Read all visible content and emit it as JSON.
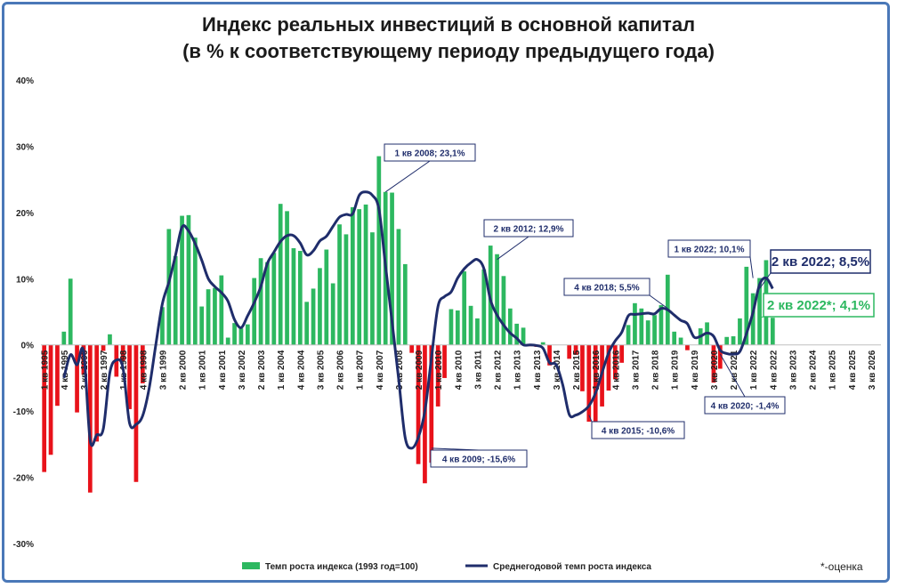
{
  "chart_data": {
    "type": "bar",
    "title_line1": "Индекс реальных инвестиций в основной капитал",
    "title_line2": "(в % к соответствующему периоду предыдущего года)",
    "ylim": [
      -30,
      40
    ],
    "yticks": [
      "-30%",
      "-20%",
      "-10%",
      "0%",
      "10%",
      "20%",
      "30%",
      "40%"
    ],
    "ytick_values": [
      -30,
      -20,
      -10,
      0,
      10,
      20,
      30,
      40
    ],
    "grid": false,
    "legend_position": "bottom",
    "x_period_start": "1 кв 1995",
    "x_period_end": "4 кв 2026",
    "x_tick_labels": [
      "1 кв 1995",
      "4 кв 1995",
      "3 кв 1996",
      "2 кв 1997",
      "1 кв 1998",
      "4 кв 1998",
      "3 кв 1999",
      "2 кв 2000",
      "1 кв 2001",
      "4 кв 2001",
      "3 кв 2002",
      "2 кв 2003",
      "1 кв 2004",
      "4 кв 2004",
      "3 кв 2005",
      "2 кв 2006",
      "1 кв 2007",
      "4 кв 2007",
      "3 кв 2008",
      "2 кв 2009",
      "1 кв 2010",
      "4 кв 2010",
      "3 кв 2011",
      "2 кв 2012",
      "1 кв 2013",
      "4 кв 2013",
      "3 кв 2014",
      "2 кв 2015",
      "1 кв 2016",
      "4 кв 2016",
      "3 кв 2017",
      "2 кв 2018",
      "1 кв 2019",
      "4 кв 2019",
      "3 кв 2020",
      "2 кв 2021",
      "1 кв 2022",
      "4 кв 2022",
      "3 кв 2023",
      "2 кв 2024",
      "1 кв 2025",
      "4 кв 2025",
      "3 кв 2026"
    ],
    "series": [
      {
        "name": "Темп роста индекса (1993 год=100)",
        "color_positive": "#2db860",
        "color_negative": "#e8121a",
        "values": [
          -19.2,
          -16.6,
          -9.2,
          2.0,
          10.0,
          -10.2,
          -4.5,
          -22.3,
          -14.6,
          -0.9,
          1.6,
          -4.8,
          -2.5,
          -9.7,
          -20.7,
          -5.8,
          0,
          0,
          5.7,
          17.5,
          13.4,
          19.5,
          19.6,
          16.2,
          5.8,
          8.4,
          8.6,
          10.5,
          1.1,
          3.3,
          2.5,
          3.1,
          10.1,
          13.1,
          12.5,
          13.9,
          21.3,
          20.2,
          14.6,
          14.2,
          6.5,
          8.5,
          11.6,
          14.4,
          9.3,
          18.2,
          16.7,
          20.8,
          20.5,
          21.2,
          17.0,
          28.5,
          23.1,
          23.0,
          17.5,
          12.2,
          -1.2,
          -18.0,
          -20.9,
          -17.8,
          -9.3,
          -5.0,
          5.4,
          5.2,
          11.1,
          5.9,
          4.0,
          11.4,
          15.0,
          13.7,
          10.4,
          5.5,
          3.2,
          2.6,
          -0.2,
          -0.3,
          0.4,
          -3.1,
          0,
          0,
          -2.1,
          -1.5,
          -7.0,
          -11.6,
          -13.8,
          -9.3,
          -6.9,
          -5.2,
          -2.7,
          3.0,
          6.3,
          5.5,
          3.7,
          4.5,
          6.0,
          10.6,
          2.0,
          1.1,
          -0.8,
          0,
          2.5,
          3.4,
          -5.7,
          -3.6,
          1.2,
          1.3,
          4.0,
          11.8,
          7.8,
          10.1,
          12.8,
          4.1
        ]
      },
      {
        "name": "Среднегодовой темп роста индекса",
        "color": "#1f2d6b",
        "start_quarter": "4 кв 1995",
        "values": [
          -5.0,
          -1.5,
          -3.0,
          -1.0,
          -14.4,
          -13.6,
          -12.7,
          -4.2,
          -2.3,
          -3.5,
          -11.8,
          -12.0,
          -10.7,
          -6.5,
          0,
          6.2,
          9.5,
          13.5,
          17.8,
          17.2,
          15.3,
          12.8,
          10.0,
          8.8,
          7.9,
          6.6,
          3.8,
          2.6,
          4.4,
          6.4,
          8.8,
          12.3,
          14.0,
          15.6,
          16.5,
          16.5,
          15.4,
          13.6,
          14.2,
          15.7,
          16.4,
          17.9,
          19.3,
          19.7,
          19.8,
          22.6,
          23.1,
          22.6,
          20.5,
          12.0,
          3.5,
          -5.1,
          -14.0,
          -15.6,
          -14.0,
          -10.0,
          -2.0,
          5.8,
          7.3,
          8.0,
          10.1,
          11.5,
          12.4,
          12.9,
          11.5,
          6.8,
          4.5,
          3.0,
          1.8,
          1.0,
          0,
          0,
          -0.1,
          -0.5,
          -2.7,
          -3.0,
          -6.0,
          -10.5,
          -10.6,
          -10.1,
          -9.2,
          -7.3,
          -4.2,
          -1.2,
          0.6,
          1.9,
          4.4,
          4.6,
          4.7,
          4.8,
          4.7,
          5.5,
          5.3,
          4.5,
          3.7,
          3.2,
          1.2,
          1.3,
          1.8,
          1.3,
          -0.8,
          -1.3,
          -1.4,
          -1.0,
          1.7,
          4.9,
          9.1,
          10.1,
          8.5
        ]
      }
    ],
    "annotations": [
      {
        "text": "1 кв 2008; 23,1%",
        "style": "normal"
      },
      {
        "text": "4 кв 2009; -15,6%",
        "style": "normal"
      },
      {
        "text": "2 кв 2012; 12,9%",
        "style": "normal"
      },
      {
        "text": "4 кв 2015; -10,6%",
        "style": "normal"
      },
      {
        "text": "4 кв 2018; 5,5%",
        "style": "normal"
      },
      {
        "text": "4 кв 2020; -1,4%",
        "style": "normal"
      },
      {
        "text": "1 кв 2022; 10,1%",
        "style": "normal"
      },
      {
        "text": "2 кв 2022; 8,5%",
        "style": "big"
      },
      {
        "text": "2 кв 2022*; 4,1%",
        "style": "green"
      }
    ],
    "note": "*-оценка"
  }
}
